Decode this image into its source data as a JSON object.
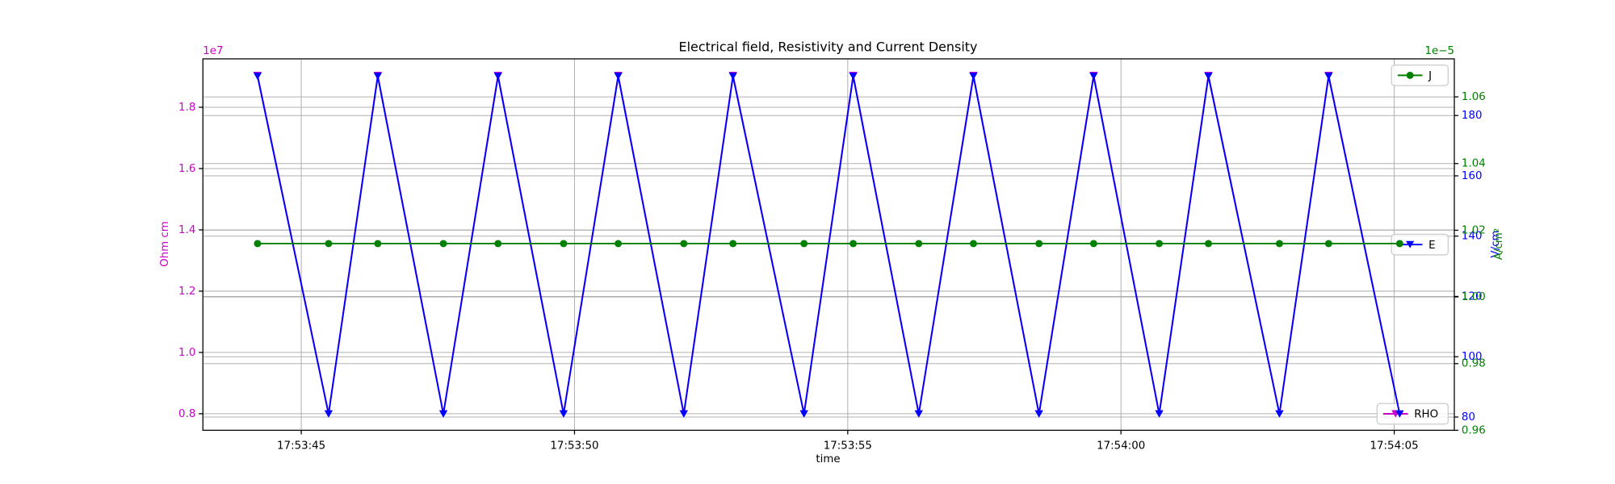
{
  "chart_data": {
    "type": "line",
    "title": "Electrical field, Resistivity and Current Density",
    "xlabel": "time",
    "ylabel": "Ohm cm",
    "ylabel_color": "#cc00cc",
    "y2label": "V/cm",
    "y2label_color": "#0000ff",
    "y3label": "A/cm²",
    "y3label_color": "#008000",
    "y_offset": "1e7",
    "y3_offset": "1e−5",
    "x": [
      "17:53:44.2",
      "17:53:45.5",
      "17:53:46.4",
      "17:53:47.6",
      "17:53:48.6",
      "17:53:49.8",
      "17:53:50.8",
      "17:53:52.0",
      "17:53:52.9",
      "17:53:54.2",
      "17:53:55.1",
      "17:53:56.3",
      "17:53:57.3",
      "17:53:58.5",
      "17:53:59.5",
      "17:54:00.7",
      "17:54:01.6",
      "17:54:02.9",
      "17:54:03.8",
      "17:54:05.1"
    ],
    "xlim": [
      "17:53:43.2",
      "17:54:06.1"
    ],
    "xticks": [
      "17:53:45",
      "17:53:50",
      "17:53:55",
      "17:54:00",
      "17:54:05"
    ],
    "ylim": [
      0.746,
      1.958
    ],
    "yticks": [
      0.8,
      {
        "value": 1,
        "label": "1.0"
      },
      1.2,
      1.4,
      1.6,
      1.8
    ],
    "y2lim": [
      75.6,
      198.8
    ],
    "y2ticks": [
      80,
      100,
      120,
      140,
      160,
      180
    ],
    "y3lim": [
      0.96,
      1.0714
    ],
    "y3ticks": [
      0.96,
      0.98,
      {
        "value": 1,
        "label": "1.00"
      },
      1.02,
      1.04,
      1.06
    ],
    "grid": true,
    "series": [
      {
        "name": "RHO",
        "color": "#cc00cc",
        "axis": "y",
        "marker": "v",
        "legend": "lower right",
        "values": [
          1.904,
          0.8,
          1.904,
          0.8,
          1.904,
          0.8,
          1.904,
          0.8,
          1.904,
          0.8,
          1.904,
          0.8,
          1.904,
          0.8,
          1.904,
          0.8,
          1.904,
          0.8,
          1.904,
          0.8
        ]
      },
      {
        "name": "E",
        "color": "#0000ff",
        "axis": "y2",
        "marker": "v",
        "legend": "center right",
        "values": [
          193,
          81,
          193,
          81,
          193,
          81,
          193,
          81,
          193,
          81,
          193,
          81,
          193,
          81,
          193,
          81,
          193,
          81,
          193,
          81
        ]
      },
      {
        "name": "J",
        "color": "#008000",
        "axis": "y3",
        "marker": "o",
        "legend": "upper right",
        "values": [
          1.016,
          1.016,
          1.016,
          1.016,
          1.016,
          1.016,
          1.016,
          1.016,
          1.016,
          1.016,
          1.016,
          1.016,
          1.016,
          1.016,
          1.016,
          1.016,
          1.016,
          1.016,
          1.016,
          1.016
        ]
      }
    ]
  }
}
